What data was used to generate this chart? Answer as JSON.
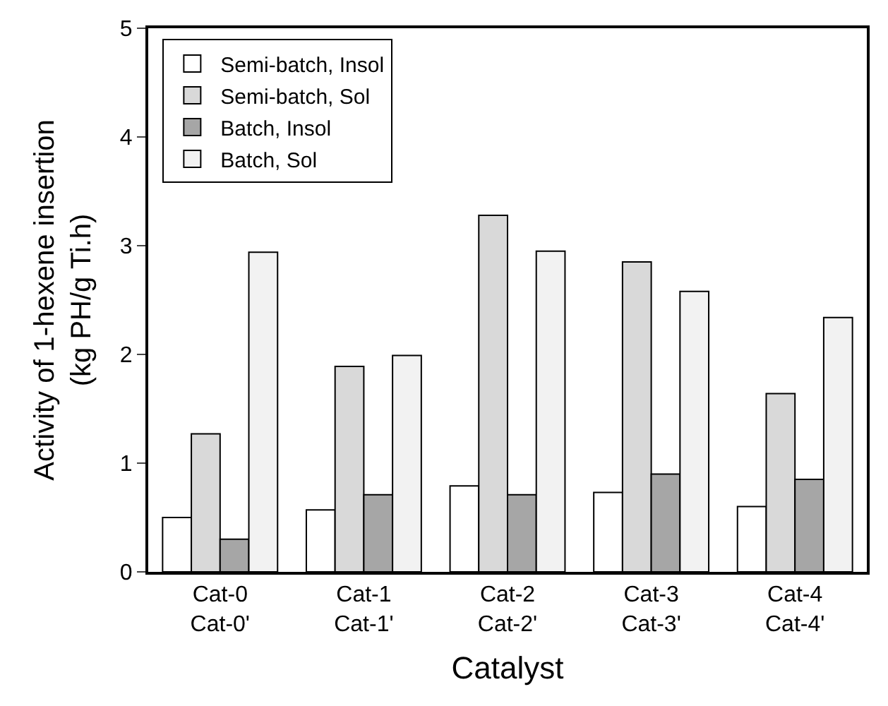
{
  "chart_data": {
    "type": "bar",
    "xlabel": "Catalyst",
    "ylabel": "Activity of 1-hexene insertion\n(kg PH/g Ti.h)",
    "categories": [
      "Cat-0\nCat-0'",
      "Cat-1\nCat-1'",
      "Cat-2\nCat-2'",
      "Cat-3\nCat-3'",
      "Cat-4\nCat-4'"
    ],
    "series": [
      {
        "name": "Semi-batch, Insol",
        "color": "#ffffff",
        "values": [
          0.5,
          0.57,
          0.79,
          0.73,
          0.6
        ]
      },
      {
        "name": "Semi-batch, Sol",
        "color": "#d9d9d9",
        "values": [
          1.27,
          1.89,
          3.28,
          2.85,
          1.64
        ]
      },
      {
        "name": "Batch, Insol",
        "color": "#a6a6a6",
        "values": [
          0.3,
          0.71,
          0.71,
          0.9,
          0.85
        ]
      },
      {
        "name": "Batch, Sol",
        "color": "#f2f2f2",
        "values": [
          2.94,
          1.99,
          2.95,
          2.58,
          2.34
        ]
      }
    ],
    "ylim": [
      0,
      5
    ],
    "yticks": [
      0,
      1,
      2,
      3,
      4,
      5
    ],
    "legend": "top left"
  }
}
